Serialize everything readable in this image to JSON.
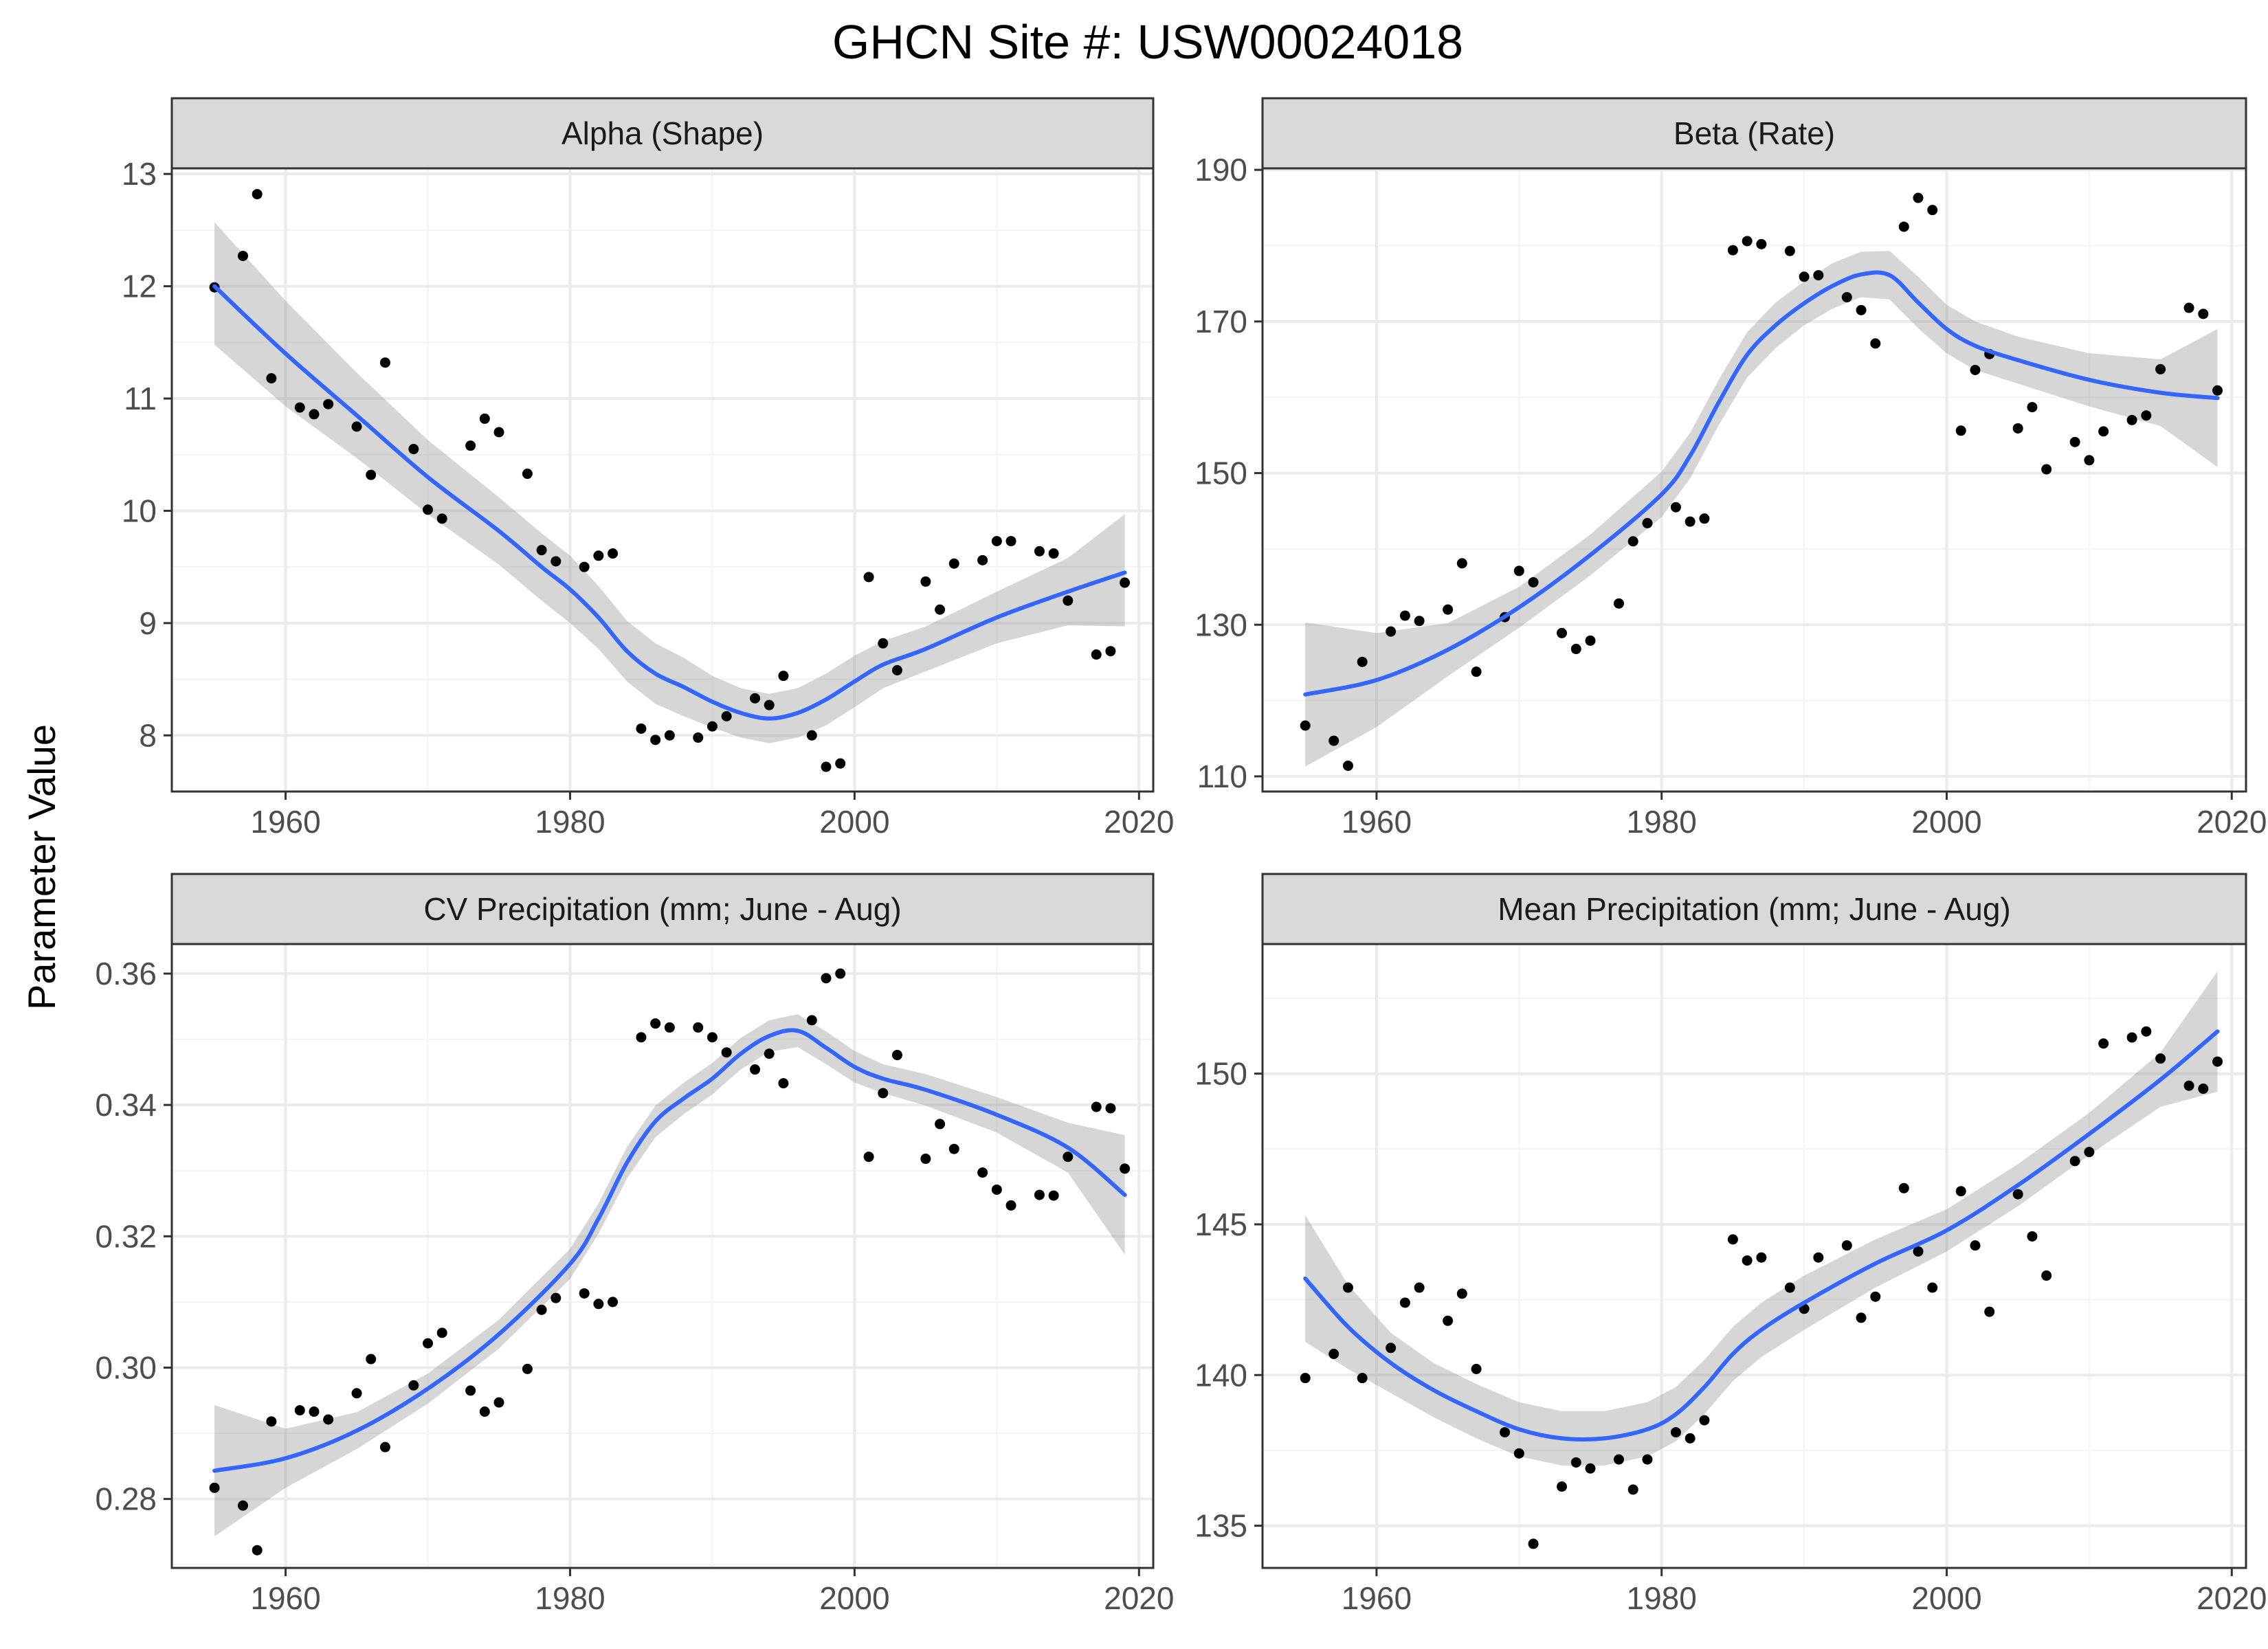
{
  "figure": {
    "title": "GHCN Site #: USW00024018",
    "ylabel": "Parameter Value"
  },
  "style": {
    "panel_bg": "#ffffff",
    "panel_border": "#333333",
    "strip_bg": "#d9d9d9",
    "grid_major": "#ebebeb",
    "grid_minor": "#f3f3f3",
    "smooth_line": "#3366ff",
    "ribbon": "#999999",
    "point": "#000000"
  },
  "chart_data": [
    {
      "type": "scatter",
      "title": "Alpha (Shape)",
      "xlim": [
        1952,
        2021
      ],
      "ylim": [
        7.5,
        13.05
      ],
      "x_ticks": [
        1960,
        1980,
        2000,
        2020
      ],
      "y_ticks": [
        8,
        9,
        10,
        11,
        12,
        13
      ],
      "points": [
        [
          1955,
          11.99
        ],
        [
          1957,
          12.27
        ],
        [
          1958,
          12.82
        ],
        [
          1959,
          11.18
        ],
        [
          1961,
          10.92
        ],
        [
          1962,
          10.86
        ],
        [
          1963,
          10.95
        ],
        [
          1965,
          10.75
        ],
        [
          1966,
          10.32
        ],
        [
          1967,
          11.32
        ],
        [
          1969,
          10.55
        ],
        [
          1970,
          10.01
        ],
        [
          1971,
          9.93
        ],
        [
          1973,
          10.58
        ],
        [
          1974,
          10.82
        ],
        [
          1975,
          10.7
        ],
        [
          1977,
          10.33
        ],
        [
          1978,
          9.65
        ],
        [
          1979,
          9.55
        ],
        [
          1981,
          9.5
        ],
        [
          1982,
          9.6
        ],
        [
          1983,
          9.62
        ],
        [
          1985,
          8.06
        ],
        [
          1986,
          7.96
        ],
        [
          1987,
          8.0
        ],
        [
          1989,
          7.98
        ],
        [
          1990,
          8.08
        ],
        [
          1991,
          8.17
        ],
        [
          1993,
          8.33
        ],
        [
          1994,
          8.27
        ],
        [
          1995,
          8.53
        ],
        [
          1997,
          8.0
        ],
        [
          1998,
          7.72
        ],
        [
          1999,
          7.75
        ],
        [
          2001,
          9.41
        ],
        [
          2002,
          8.82
        ],
        [
          2003,
          8.58
        ],
        [
          2005,
          9.37
        ],
        [
          2006,
          9.12
        ],
        [
          2007,
          9.53
        ],
        [
          2009,
          9.56
        ],
        [
          2010,
          9.73
        ],
        [
          2011,
          9.73
        ],
        [
          2013,
          9.64
        ],
        [
          2014,
          9.62
        ],
        [
          2015,
          9.2
        ],
        [
          2017,
          8.72
        ],
        [
          2018,
          8.75
        ],
        [
          2019,
          9.36
        ]
      ],
      "smooth": {
        "x": [
          1955,
          1960,
          1965,
          1970,
          1975,
          1978,
          1980,
          1982,
          1984,
          1986,
          1988,
          1990,
          1992,
          1994,
          1996,
          1998,
          2000,
          2002,
          2005,
          2010,
          2015,
          2019
        ],
        "y": [
          12.0,
          11.4,
          10.85,
          10.3,
          9.82,
          9.5,
          9.3,
          9.05,
          8.75,
          8.55,
          8.43,
          8.3,
          8.2,
          8.15,
          8.2,
          8.32,
          8.48,
          8.63,
          8.77,
          9.05,
          9.28,
          9.45
        ],
        "lower": [
          11.48,
          10.93,
          10.47,
          9.97,
          9.52,
          9.2,
          9.0,
          8.77,
          8.48,
          8.28,
          8.17,
          8.07,
          7.98,
          7.93,
          7.98,
          8.09,
          8.25,
          8.42,
          8.57,
          8.82,
          8.98,
          8.97
        ],
        "upper": [
          12.57,
          11.87,
          11.23,
          10.63,
          10.12,
          9.8,
          9.6,
          9.33,
          9.02,
          8.82,
          8.69,
          8.53,
          8.42,
          8.37,
          8.42,
          8.55,
          8.71,
          8.84,
          8.97,
          9.28,
          9.58,
          9.97
        ]
      }
    },
    {
      "type": "scatter",
      "title": "Beta (Rate)",
      "xlim": [
        1952,
        2021
      ],
      "ylim": [
        108,
        190.2
      ],
      "x_ticks": [
        1960,
        1980,
        2000,
        2020
      ],
      "y_ticks": [
        110,
        130,
        150,
        170,
        190
      ],
      "points": [
        [
          1955,
          116.7
        ],
        [
          1957,
          114.7
        ],
        [
          1958,
          111.4
        ],
        [
          1959,
          125.1
        ],
        [
          1961,
          129.1
        ],
        [
          1962,
          131.2
        ],
        [
          1963,
          130.5
        ],
        [
          1965,
          132.0
        ],
        [
          1966,
          138.1
        ],
        [
          1967,
          123.8
        ],
        [
          1969,
          131.0
        ],
        [
          1970,
          137.1
        ],
        [
          1971,
          135.6
        ],
        [
          1973,
          128.9
        ],
        [
          1974,
          126.8
        ],
        [
          1975,
          127.9
        ],
        [
          1977,
          132.8
        ],
        [
          1978,
          141.0
        ],
        [
          1979,
          143.4
        ],
        [
          1981,
          145.5
        ],
        [
          1982,
          143.6
        ],
        [
          1983,
          144.0
        ],
        [
          1985,
          179.4
        ],
        [
          1986,
          180.6
        ],
        [
          1987,
          180.2
        ],
        [
          1989,
          179.3
        ],
        [
          1990,
          175.9
        ],
        [
          1991,
          176.1
        ],
        [
          1993,
          173.2
        ],
        [
          1994,
          171.5
        ],
        [
          1995,
          167.1
        ],
        [
          1997,
          182.5
        ],
        [
          1998,
          186.3
        ],
        [
          1999,
          184.7
        ],
        [
          2001,
          155.6
        ],
        [
          2002,
          163.6
        ],
        [
          2003,
          165.7
        ],
        [
          2005,
          155.9
        ],
        [
          2006,
          158.7
        ],
        [
          2007,
          150.5
        ],
        [
          2009,
          154.1
        ],
        [
          2010,
          151.7
        ],
        [
          2011,
          155.5
        ],
        [
          2013,
          157.0
        ],
        [
          2014,
          157.6
        ],
        [
          2015,
          163.7
        ],
        [
          2017,
          171.8
        ],
        [
          2018,
          171.0
        ],
        [
          2019,
          160.9
        ]
      ],
      "smooth": {
        "x": [
          1955,
          1960,
          1965,
          1970,
          1975,
          1980,
          1982,
          1984,
          1986,
          1988,
          1990,
          1992,
          1994,
          1996,
          1998,
          2000,
          2002,
          2005,
          2010,
          2015,
          2019
        ],
        "y": [
          120.8,
          122.7,
          126.7,
          132.3,
          139.2,
          147.2,
          152.3,
          159.3,
          165.6,
          169.5,
          172.4,
          174.7,
          176.2,
          176.1,
          172.5,
          169.0,
          166.8,
          164.9,
          162.3,
          160.6,
          159.9
        ],
        "lower": [
          111.3,
          116.5,
          123.2,
          129.6,
          136.5,
          144.2,
          149.3,
          156.3,
          162.6,
          166.5,
          169.5,
          171.7,
          173.2,
          172.9,
          169.1,
          165.8,
          163.6,
          161.8,
          158.8,
          156.2,
          150.8
        ],
        "upper": [
          130.3,
          128.9,
          130.2,
          135.0,
          141.9,
          150.2,
          155.3,
          162.3,
          168.6,
          172.5,
          175.3,
          177.7,
          179.2,
          179.3,
          175.9,
          172.2,
          170.0,
          168.0,
          165.8,
          165.0,
          169.0
        ]
      }
    },
    {
      "type": "scatter",
      "title": "CV Precipitation (mm; June - Aug)",
      "xlim": [
        1952,
        2021
      ],
      "ylim": [
        0.2695,
        0.3645
      ],
      "x_ticks": [
        1960,
        1980,
        2000,
        2020
      ],
      "y_ticks": [
        0.28,
        0.3,
        0.32,
        0.34,
        0.36
      ],
      "y_tick_labels": [
        "0.28",
        "0.30",
        "0.32",
        "0.34",
        "0.36"
      ],
      "points": [
        [
          1955,
          0.2817
        ],
        [
          1957,
          0.279
        ],
        [
          1958,
          0.2722
        ],
        [
          1959,
          0.2918
        ],
        [
          1961,
          0.2935
        ],
        [
          1962,
          0.2933
        ],
        [
          1963,
          0.2921
        ],
        [
          1965,
          0.2961
        ],
        [
          1966,
          0.3013
        ],
        [
          1967,
          0.2879
        ],
        [
          1969,
          0.2973
        ],
        [
          1970,
          0.3037
        ],
        [
          1971,
          0.3053
        ],
        [
          1973,
          0.2965
        ],
        [
          1974,
          0.2933
        ],
        [
          1975,
          0.2947
        ],
        [
          1977,
          0.2998
        ],
        [
          1978,
          0.3088
        ],
        [
          1979,
          0.3106
        ],
        [
          1981,
          0.3113
        ],
        [
          1982,
          0.3097
        ],
        [
          1983,
          0.31
        ],
        [
          1985,
          0.3503
        ],
        [
          1986,
          0.3524
        ],
        [
          1987,
          0.3518
        ],
        [
          1989,
          0.3518
        ],
        [
          1990,
          0.3503
        ],
        [
          1991,
          0.348
        ],
        [
          1993,
          0.3454
        ],
        [
          1994,
          0.3478
        ],
        [
          1995,
          0.3433
        ],
        [
          1997,
          0.3529
        ],
        [
          1998,
          0.3593
        ],
        [
          1999,
          0.36
        ],
        [
          2001,
          0.3321
        ],
        [
          2002,
          0.3418
        ],
        [
          2003,
          0.3476
        ],
        [
          2005,
          0.3318
        ],
        [
          2006,
          0.3371
        ],
        [
          2007,
          0.3333
        ],
        [
          2009,
          0.3297
        ],
        [
          2010,
          0.3271
        ],
        [
          2011,
          0.3247
        ],
        [
          2013,
          0.3263
        ],
        [
          2014,
          0.3262
        ],
        [
          2015,
          0.3321
        ],
        [
          2017,
          0.3397
        ],
        [
          2018,
          0.3395
        ],
        [
          2019,
          0.3303
        ]
      ],
      "smooth": {
        "x": [
          1955,
          1960,
          1965,
          1970,
          1975,
          1980,
          1982,
          1984,
          1986,
          1988,
          1990,
          1992,
          1994,
          1996,
          1998,
          2000,
          2002,
          2005,
          2010,
          2015,
          2019
        ],
        "y": [
          0.2843,
          0.2862,
          0.2904,
          0.2968,
          0.3051,
          0.3158,
          0.3227,
          0.3312,
          0.3375,
          0.341,
          0.344,
          0.3478,
          0.3505,
          0.3513,
          0.3487,
          0.3458,
          0.344,
          0.3423,
          0.3385,
          0.3335,
          0.3263
        ],
        "lower": [
          0.2743,
          0.2817,
          0.2876,
          0.2945,
          0.3029,
          0.3135,
          0.3204,
          0.3288,
          0.3351,
          0.3386,
          0.3416,
          0.3454,
          0.3481,
          0.3488,
          0.3462,
          0.3434,
          0.3418,
          0.3399,
          0.3358,
          0.3297,
          0.3172
        ],
        "upper": [
          0.2943,
          0.2907,
          0.2932,
          0.2991,
          0.3073,
          0.3181,
          0.325,
          0.3336,
          0.3399,
          0.3434,
          0.3464,
          0.3502,
          0.3529,
          0.3538,
          0.3512,
          0.3482,
          0.3462,
          0.3447,
          0.3412,
          0.3373,
          0.3354
        ]
      }
    },
    {
      "type": "scatter",
      "title": "Mean Precipitation (mm; June - Aug)",
      "xlim": [
        1952,
        2021
      ],
      "ylim": [
        133.6,
        154.3
      ],
      "x_ticks": [
        1960,
        1980,
        2000,
        2020
      ],
      "y_ticks": [
        135,
        140,
        145,
        150
      ],
      "points": [
        [
          1955,
          139.9
        ],
        [
          1957,
          140.7
        ],
        [
          1958,
          142.9
        ],
        [
          1959,
          139.9
        ],
        [
          1961,
          140.9
        ],
        [
          1962,
          142.4
        ],
        [
          1963,
          142.9
        ],
        [
          1965,
          141.8
        ],
        [
          1966,
          142.7
        ],
        [
          1967,
          140.2
        ],
        [
          1969,
          138.1
        ],
        [
          1970,
          137.4
        ],
        [
          1971,
          134.4
        ],
        [
          1973,
          136.3
        ],
        [
          1974,
          137.1
        ],
        [
          1975,
          136.9
        ],
        [
          1977,
          137.2
        ],
        [
          1978,
          136.2
        ],
        [
          1979,
          137.2
        ],
        [
          1981,
          138.1
        ],
        [
          1982,
          137.9
        ],
        [
          1983,
          138.5
        ],
        [
          1985,
          144.5
        ],
        [
          1986,
          143.8
        ],
        [
          1987,
          143.9
        ],
        [
          1989,
          142.9
        ],
        [
          1990,
          142.2
        ],
        [
          1991,
          143.9
        ],
        [
          1993,
          144.3
        ],
        [
          1994,
          141.9
        ],
        [
          1995,
          142.6
        ],
        [
          1997,
          146.2
        ],
        [
          1998,
          144.1
        ],
        [
          1999,
          142.9
        ],
        [
          2001,
          146.1
        ],
        [
          2002,
          144.3
        ],
        [
          2003,
          142.1
        ],
        [
          2005,
          146.0
        ],
        [
          2006,
          144.6
        ],
        [
          2007,
          143.3
        ],
        [
          2009,
          147.1
        ],
        [
          2010,
          147.4
        ],
        [
          2011,
          151.0
        ],
        [
          2013,
          151.2
        ],
        [
          2014,
          151.4
        ],
        [
          2015,
          150.5
        ],
        [
          2017,
          149.6
        ],
        [
          2018,
          149.5
        ],
        [
          2019,
          150.4
        ]
      ],
      "smooth": {
        "x": [
          1955,
          1958,
          1961,
          1964,
          1967,
          1970,
          1973,
          1976,
          1979,
          1981,
          1983,
          1985,
          1987,
          1990,
          1995,
          2000,
          2005,
          2010,
          2015,
          2019
        ],
        "y": [
          143.2,
          141.6,
          140.4,
          139.5,
          138.8,
          138.2,
          137.9,
          137.9,
          138.2,
          138.7,
          139.6,
          140.7,
          141.5,
          142.4,
          143.7,
          144.8,
          146.3,
          148.0,
          149.8,
          151.4
        ],
        "lower": [
          141.1,
          140.2,
          139.4,
          138.6,
          137.9,
          137.3,
          137.0,
          137.0,
          137.3,
          137.8,
          138.7,
          139.8,
          140.6,
          141.5,
          142.9,
          144.1,
          145.6,
          147.3,
          148.9,
          149.4
        ],
        "upper": [
          145.3,
          143.0,
          141.4,
          140.4,
          139.7,
          139.1,
          138.8,
          138.8,
          139.1,
          139.6,
          140.5,
          141.6,
          142.4,
          143.3,
          144.5,
          145.5,
          147.0,
          148.7,
          150.7,
          153.4
        ]
      }
    }
  ]
}
